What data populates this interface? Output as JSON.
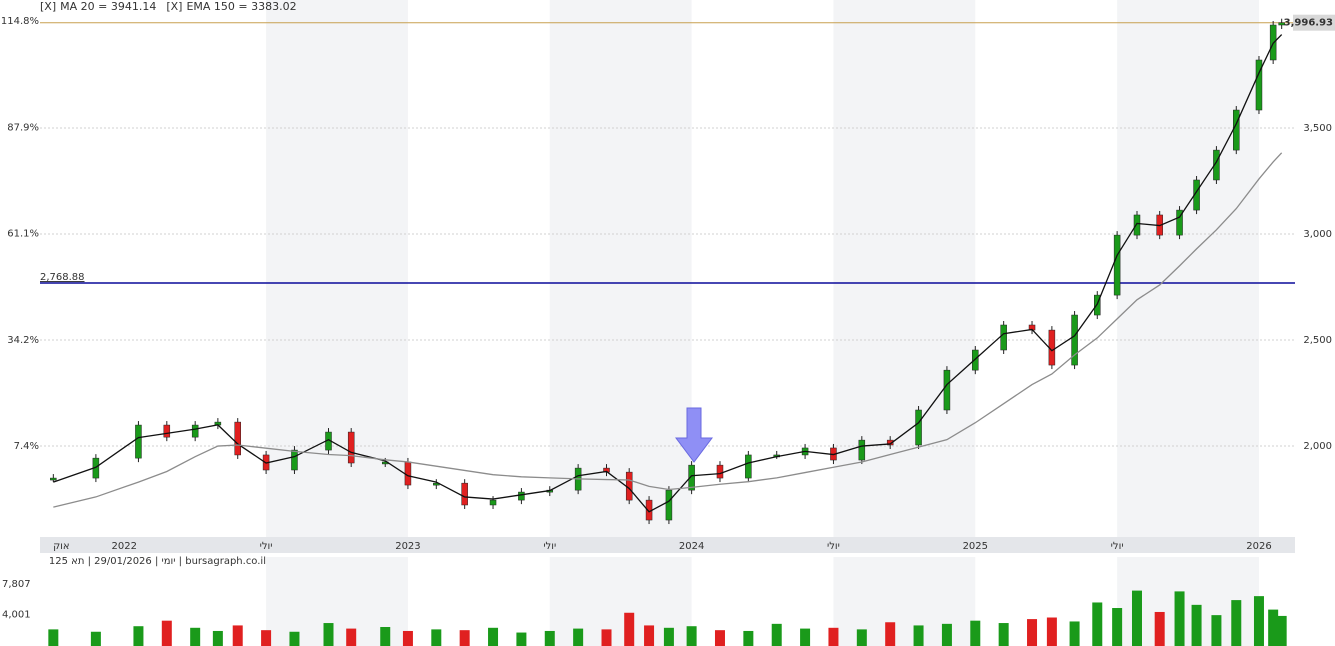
{
  "chart_data": [
    {
      "type": "candle",
      "legend": [
        {
          "marker": "[X]",
          "name": "MA 20 = 3941.14",
          "color": "#111111"
        },
        {
          "marker": "[X]",
          "name": "EMA 150 = 3383.02",
          "color": "#888888"
        }
      ],
      "x": [
        2021.75,
        2021.9,
        2022.05,
        2022.15,
        2022.25,
        2022.33,
        2022.4,
        2022.5,
        2022.6,
        2022.72,
        2022.8,
        2022.92,
        2023.0,
        2023.1,
        2023.2,
        2023.3,
        2023.4,
        2023.5,
        2023.6,
        2023.7,
        2023.78,
        2023.85,
        2023.92,
        2024.0,
        2024.1,
        2024.2,
        2024.3,
        2024.4,
        2024.5,
        2024.6,
        2024.7,
        2024.8,
        2024.9,
        2025.0,
        2025.1,
        2025.2,
        2025.27,
        2025.35,
        2025.43,
        2025.5,
        2025.57,
        2025.65,
        2025.72,
        2025.78,
        2025.85,
        2025.92,
        2026.0,
        2026.05,
        2026.08
      ],
      "series": [
        {
          "name": "Close",
          "kind": "candle",
          "values": [
            1849,
            1943,
            2099,
            2042,
            2099,
            2113,
            1958,
            1887,
            1981,
            2066,
            1920,
            1925,
            1816,
            1825,
            1722,
            1745,
            1783,
            1792,
            1896,
            1877,
            1745,
            1651,
            1792,
            1910,
            1849,
            1958,
            1958,
            1991,
            1934,
            2028,
            2005,
            2170,
            2358,
            2453,
            2571,
            2547,
            2382,
            2618,
            2712,
            2995,
            3090,
            2995,
            3113,
            3255,
            3396,
            3585,
            3821,
            3986,
            3996.93
          ]
        },
        {
          "name": "MA 20",
          "kind": "line",
          "color": "#111111",
          "values": [
            1830,
            1900,
            2040,
            2060,
            2080,
            2100,
            2010,
            1920,
            1950,
            2030,
            1970,
            1930,
            1860,
            1830,
            1760,
            1750,
            1770,
            1790,
            1860,
            1880,
            1800,
            1690,
            1740,
            1860,
            1870,
            1920,
            1950,
            1975,
            1960,
            2000,
            2010,
            2110,
            2290,
            2410,
            2530,
            2550,
            2450,
            2520,
            2670,
            2900,
            3050,
            3040,
            3080,
            3200,
            3340,
            3520,
            3760,
            3900,
            3941.14
          ]
        },
        {
          "name": "EMA 150",
          "kind": "line",
          "color": "#8c8c8c",
          "values": [
            1712,
            1760,
            1830,
            1880,
            1950,
            2000,
            2005,
            1990,
            1975,
            1960,
            1955,
            1935,
            1925,
            1905,
            1885,
            1865,
            1855,
            1850,
            1845,
            1842,
            1840,
            1810,
            1795,
            1805,
            1820,
            1832,
            1850,
            1875,
            1900,
            1925,
            1960,
            1995,
            2030,
            2110,
            2200,
            2290,
            2340,
            2430,
            2510,
            2600,
            2690,
            2760,
            2850,
            2930,
            3020,
            3120,
            3260,
            3340,
            3383.02
          ]
        }
      ],
      "up_color": "#1a9a1a",
      "down_color": "#e02020",
      "xlim": [
        2021.703,
        2026.127
      ],
      "xticks": [
        {
          "value": 2021.75,
          "label": "אוק"
        },
        2022,
        {
          "value": 2022.5,
          "label": "יולי"
        },
        2023,
        {
          "value": 2023.5,
          "label": "יולי"
        },
        2024,
        {
          "value": 2024.5,
          "label": "יולי"
        },
        2025,
        {
          "value": 2025.5,
          "label": "יולי"
        },
        2026
      ],
      "ylim": [
        1571,
        4104
      ],
      "yticks": [
        {
          "value": 2000,
          "label": "2,000"
        },
        {
          "value": 2500,
          "label": "2,500"
        },
        {
          "value": 3000,
          "label": "3,000"
        },
        {
          "value": 3500,
          "label": "3,500"
        }
      ],
      "y2lim": [
        -15.6,
        120.17
      ],
      "y2ticks": [
        {
          "value": 7.4,
          "label": "7.4%"
        },
        {
          "value": 34.2,
          "label": "34.2%"
        },
        {
          "value": 61.1,
          "label": "61.1%"
        },
        {
          "value": 87.9,
          "label": "87.9%"
        },
        {
          "value": 114.8,
          "label": "114.8%"
        }
      ],
      "hline": {
        "value": 2768.88,
        "label": "2,768.88",
        "color": "#0a0a9a"
      },
      "last_price": {
        "value": 3996.93,
        "label": "3,996.93",
        "color": "#c8a050"
      },
      "grid": true
    },
    {
      "type": "volume",
      "title": "יומי | 29/01/2026 | תא 125 | bursagraph.co.il",
      "values": [
        2100,
        1800,
        2500,
        3200,
        2300,
        1900,
        2600,
        2000,
        1800,
        2900,
        2200,
        2400,
        1900,
        2100,
        2000,
        2300,
        1700,
        1900,
        2200,
        2100,
        4200,
        2600,
        2300,
        2500,
        2000,
        1900,
        2800,
        2200,
        2300,
        2100,
        3000,
        2600,
        2800,
        3200,
        2900,
        3400,
        3600,
        3100,
        5500,
        4800,
        7000,
        4300,
        6900,
        5200,
        3900,
        5800,
        6300,
        4600,
        3800
      ],
      "ylim": [
        0,
        11246
      ],
      "yticks": [
        {
          "value": 4001,
          "label": "4,001"
        },
        {
          "value": 7807,
          "label": "7,807"
        }
      ]
    }
  ]
}
